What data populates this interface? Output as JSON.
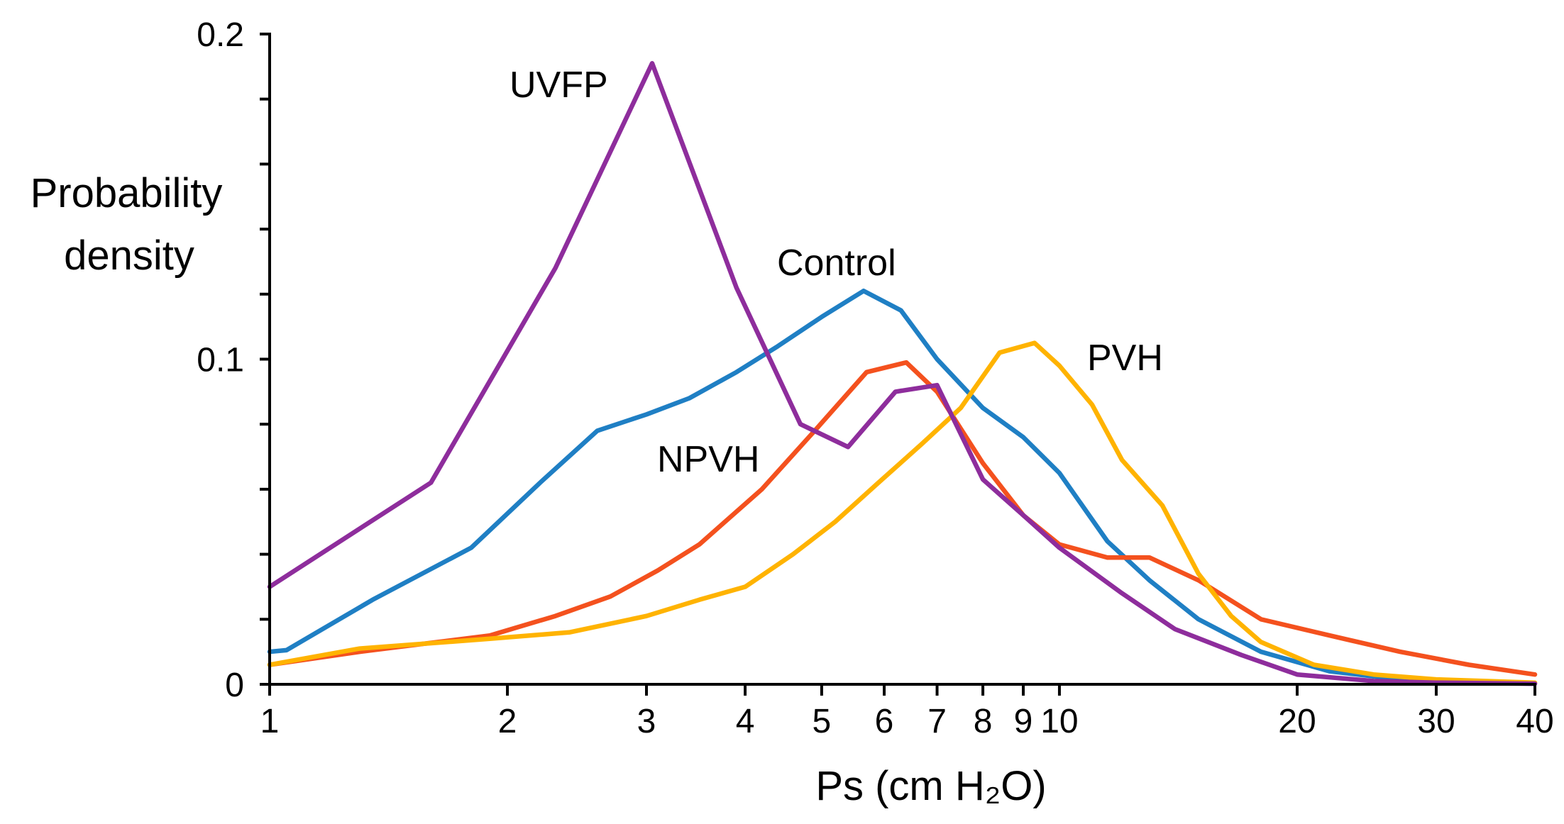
{
  "chart_data": {
    "type": "line",
    "title": "",
    "ylabel_lines": [
      "Probability",
      "density"
    ],
    "xlabel": "Ps (cm H₂O)",
    "xscale": "log",
    "xlim": [
      1,
      40
    ],
    "ylim": [
      0,
      0.2
    ],
    "grid": false,
    "x_ticks": [
      {
        "value": 1,
        "label": "1"
      },
      {
        "value": 2,
        "label": "2"
      },
      {
        "value": 3,
        "label": "3"
      },
      {
        "value": 4,
        "label": "4"
      },
      {
        "value": 5,
        "label": "5"
      },
      {
        "value": 6,
        "label": "6"
      },
      {
        "value": 7,
        "label": "7"
      },
      {
        "value": 8,
        "label": "8"
      },
      {
        "value": 9,
        "label": "9"
      },
      {
        "value": 10,
        "label": "10"
      },
      {
        "value": 20,
        "label": "20"
      },
      {
        "value": 30,
        "label": "30"
      },
      {
        "value": 40,
        "label": "40"
      }
    ],
    "y_ticks": [
      0,
      0.02,
      0.04,
      0.06,
      0.08,
      0.1,
      0.12,
      0.14,
      0.16,
      0.18,
      0.2
    ],
    "y_tick_labels": [
      {
        "value": 0,
        "label": "0"
      },
      {
        "value": 0.1,
        "label": "0.1"
      },
      {
        "value": 0.2,
        "label": "0.2"
      }
    ],
    "series": [
      {
        "name": "Control",
        "color": "#1f7fc4",
        "x": [
          1,
          1.05,
          1.35,
          1.8,
          2.2,
          2.6,
          3.0,
          3.4,
          3.9,
          4.4,
          5.0,
          5.65,
          6.3,
          7.0,
          8.0,
          9.0,
          10.0,
          11.5,
          13.0,
          15.0,
          18.0,
          22.0,
          27.0,
          33.0,
          40.0
        ],
        "values": [
          0.01,
          0.0105,
          0.026,
          0.042,
          0.062,
          0.078,
          0.083,
          0.088,
          0.096,
          0.104,
          0.113,
          0.121,
          0.115,
          0.1,
          0.085,
          0.076,
          0.065,
          0.044,
          0.032,
          0.02,
          0.01,
          0.004,
          0.0015,
          0.0005,
          0.0002
        ]
      },
      {
        "name": "NPVH",
        "color": "#f4511e",
        "x": [
          1,
          1.3,
          1.9,
          2.3,
          2.7,
          3.1,
          3.5,
          4.2,
          4.9,
          5.7,
          6.4,
          7.0,
          8.0,
          9.0,
          10.0,
          11.5,
          13.0,
          15.0,
          18.0,
          22.0,
          27.0,
          33.0,
          40.0
        ],
        "values": [
          0.006,
          0.01,
          0.015,
          0.021,
          0.027,
          0.035,
          0.043,
          0.06,
          0.078,
          0.096,
          0.099,
          0.09,
          0.068,
          0.052,
          0.043,
          0.039,
          0.039,
          0.032,
          0.02,
          0.015,
          0.01,
          0.006,
          0.003
        ]
      },
      {
        "name": "PVH",
        "color": "#ffb300",
        "x": [
          1,
          1.3,
          1.9,
          2.4,
          3.0,
          3.5,
          4.0,
          4.6,
          5.2,
          5.9,
          6.7,
          7.5,
          8.4,
          9.3,
          10.0,
          11.0,
          12.0,
          13.5,
          15.0,
          16.5,
          18.0,
          21.0,
          25.0,
          30.0,
          40.0
        ],
        "values": [
          0.006,
          0.011,
          0.014,
          0.016,
          0.021,
          0.026,
          0.03,
          0.04,
          0.05,
          0.062,
          0.074,
          0.085,
          0.102,
          0.105,
          0.098,
          0.086,
          0.069,
          0.055,
          0.034,
          0.021,
          0.013,
          0.006,
          0.003,
          0.0015,
          0.0005
        ]
      },
      {
        "name": "UVFP",
        "color": "#8e2d9c",
        "x": [
          1,
          1.6,
          2.3,
          3.05,
          3.9,
          4.7,
          5.4,
          6.2,
          7.0,
          8.0,
          9.0,
          10.0,
          12.0,
          14.0,
          17.0,
          20.0,
          25.0,
          30.0,
          40.0
        ],
        "values": [
          0.03,
          0.062,
          0.128,
          0.191,
          0.122,
          0.08,
          0.073,
          0.09,
          0.092,
          0.063,
          0.052,
          0.042,
          0.028,
          0.017,
          0.009,
          0.003,
          0.001,
          0.0005,
          0.0002
        ]
      }
    ],
    "annotations": [
      {
        "text": "UVFP",
        "series": "UVFP"
      },
      {
        "text": "Control",
        "series": "Control"
      },
      {
        "text": "NPVH",
        "series": "NPVH"
      },
      {
        "text": "PVH",
        "series": "PVH"
      }
    ]
  }
}
